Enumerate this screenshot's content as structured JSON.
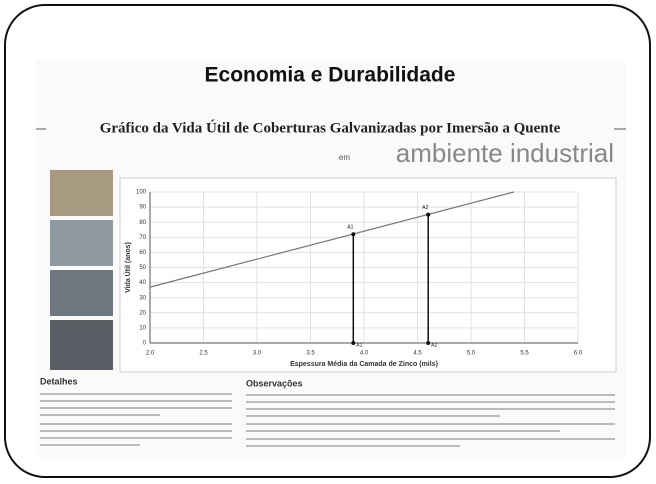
{
  "slide_title": "Economia e Durabilidade",
  "subtitle": "Gráfico da Vida Útil de Coberturas Galvanizadas por Imersão a Quente",
  "environment_prefix": "em",
  "environment": "ambiente industrial",
  "details_heading": "Detalhes",
  "notes_heading": "Observações",
  "chart_data": {
    "type": "line",
    "x_label": "Espessura Média da Camada de Zinco (mils)",
    "y_label": "Vida Útil (anos)",
    "series": [
      {
        "x": [
          2.0,
          5.4
        ],
        "values": [
          37,
          100
        ],
        "color": "#777777"
      }
    ],
    "points": [
      {
        "label": "A1",
        "x": 3.9,
        "value": 72
      },
      {
        "label": "A2",
        "x": 4.6,
        "value": 85
      }
    ],
    "point_color": "#111111",
    "xlim": [
      2.0,
      6.0
    ],
    "xticks": [
      {
        "value": 2,
        "label": "2.0"
      },
      2.5,
      {
        "value": 3,
        "label": "3.0"
      },
      3.5,
      {
        "value": 4,
        "label": "4.0"
      },
      4.5,
      {
        "value": 5,
        "label": "5.0"
      },
      5.5,
      {
        "value": 6,
        "label": "6.0"
      }
    ],
    "ylim": [
      0,
      100
    ],
    "yticks": [
      0,
      10,
      20,
      30,
      40,
      50,
      60,
      70,
      80,
      90,
      100
    ],
    "grid": true
  }
}
